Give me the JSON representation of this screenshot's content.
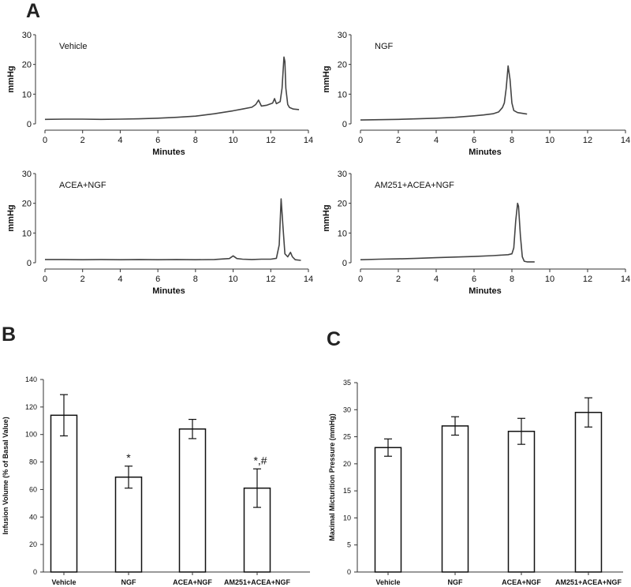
{
  "figure": {
    "panel_labels": {
      "a": "A",
      "b": "B",
      "c": "C"
    }
  },
  "chart_data": [
    {
      "panel": "A",
      "type": "line",
      "title": "Vehicle",
      "xlabel": "Minutes",
      "ylabel": "mmHg",
      "xlim": [
        0,
        14
      ],
      "ylim": [
        0,
        30
      ],
      "xticks": [
        0,
        2,
        4,
        6,
        8,
        10,
        12,
        14
      ],
      "yticks": [
        0,
        10,
        20,
        30
      ],
      "x": [
        0,
        1,
        2,
        3,
        4,
        5,
        6,
        7,
        8,
        8.5,
        9,
        9.5,
        10,
        10.5,
        11,
        11.2,
        11.35,
        11.5,
        11.8,
        12.1,
        12.2,
        12.3,
        12.5,
        12.6,
        12.7,
        12.75,
        12.8,
        12.9,
        13.0,
        13.2,
        13.5
      ],
      "y": [
        1.5,
        1.6,
        1.6,
        1.5,
        1.6,
        1.7,
        1.9,
        2.2,
        2.6,
        3.0,
        3.4,
        3.9,
        4.4,
        5.0,
        5.6,
        6.5,
        8.0,
        6.0,
        6.3,
        7.0,
        8.5,
        6.8,
        7.5,
        12.0,
        22.5,
        21.0,
        12.0,
        6.5,
        5.5,
        5.0,
        4.8
      ]
    },
    {
      "panel": "A",
      "type": "line",
      "title": "NGF",
      "xlabel": "Minutes",
      "ylabel": "mmHg",
      "xlim": [
        0,
        14
      ],
      "ylim": [
        0,
        30
      ],
      "xticks": [
        0,
        2,
        4,
        6,
        8,
        10,
        12,
        14
      ],
      "yticks": [
        0,
        10,
        20,
        30
      ],
      "x": [
        0,
        1,
        2,
        3,
        4,
        5,
        6,
        6.5,
        7,
        7.3,
        7.5,
        7.6,
        7.7,
        7.8,
        7.9,
        8.0,
        8.1,
        8.3,
        8.6,
        8.8
      ],
      "y": [
        1.3,
        1.4,
        1.5,
        1.7,
        1.9,
        2.2,
        2.7,
        3.0,
        3.4,
        4.0,
        5.5,
        7.0,
        12.0,
        19.5,
        15.0,
        7.0,
        4.5,
        3.8,
        3.5,
        3.3
      ]
    },
    {
      "panel": "A",
      "type": "line",
      "title": "ACEA+NGF",
      "xlabel": "Minutes",
      "ylabel": "mmHg",
      "xlim": [
        0,
        14
      ],
      "ylim": [
        0,
        30
      ],
      "xticks": [
        0,
        2,
        4,
        6,
        8,
        10,
        12,
        14
      ],
      "yticks": [
        0,
        10,
        20,
        30
      ],
      "x": [
        0,
        1,
        2,
        3,
        4,
        5,
        6,
        7,
        8,
        9,
        9.8,
        10.0,
        10.2,
        10.5,
        11,
        11.5,
        12,
        12.3,
        12.45,
        12.55,
        12.65,
        12.75,
        12.9,
        13.05,
        13.15,
        13.3,
        13.6
      ],
      "y": [
        1.1,
        1.1,
        1.0,
        1.1,
        1.0,
        1.1,
        1.0,
        1.1,
        1.0,
        1.1,
        1.4,
        2.3,
        1.4,
        1.2,
        1.1,
        1.2,
        1.2,
        1.5,
        6.0,
        21.5,
        12.0,
        3.0,
        2.0,
        3.5,
        2.0,
        1.0,
        0.8
      ]
    },
    {
      "panel": "A",
      "type": "line",
      "title": "AM251+ACEA+NGF",
      "xlabel": "Minutes",
      "ylabel": "mmHg",
      "xlim": [
        0,
        14
      ],
      "ylim": [
        0,
        30
      ],
      "xticks": [
        0,
        2,
        4,
        6,
        8,
        10,
        12,
        14
      ],
      "yticks": [
        0,
        10,
        20,
        30
      ],
      "x": [
        0,
        1,
        2,
        3,
        4,
        5,
        6,
        7,
        7.8,
        8.0,
        8.1,
        8.2,
        8.3,
        8.35,
        8.45,
        8.55,
        8.65,
        8.8,
        9.2
      ],
      "y": [
        1.0,
        1.2,
        1.3,
        1.5,
        1.7,
        1.9,
        2.1,
        2.4,
        2.7,
        3.0,
        5.0,
        14.0,
        20.0,
        19.0,
        9.0,
        2.0,
        0.5,
        0.3,
        0.3
      ]
    },
    {
      "panel": "B",
      "type": "bar",
      "categories": [
        "Vehicle",
        "NGF",
        "ACEA+NGF",
        "AM251+ACEA+NGF"
      ],
      "values": [
        114,
        69,
        104,
        61
      ],
      "errors": [
        15,
        8,
        7,
        14
      ],
      "annotations": [
        "",
        "*",
        "",
        "*,#"
      ],
      "title": "",
      "xlabel": "",
      "ylabel": "Infusion Volume (% of Basal Value)",
      "ylim": [
        0,
        140
      ],
      "yticks": [
        0,
        20,
        40,
        60,
        80,
        100,
        120,
        140
      ]
    },
    {
      "panel": "C",
      "type": "bar",
      "categories": [
        "Vehicle",
        "NGF",
        "ACEA+NGF",
        "AM251+ACEA+NGF"
      ],
      "values": [
        23,
        27,
        26,
        29.5
      ],
      "errors": [
        1.6,
        1.7,
        2.4,
        2.7
      ],
      "annotations": [
        "",
        "",
        "",
        ""
      ],
      "title": "",
      "xlabel": "",
      "ylabel": "Maximal Micturition Pressure (mmHg)",
      "ylim": [
        0,
        35
      ],
      "yticks": [
        0,
        5,
        10,
        15,
        20,
        25,
        30,
        35
      ]
    }
  ]
}
